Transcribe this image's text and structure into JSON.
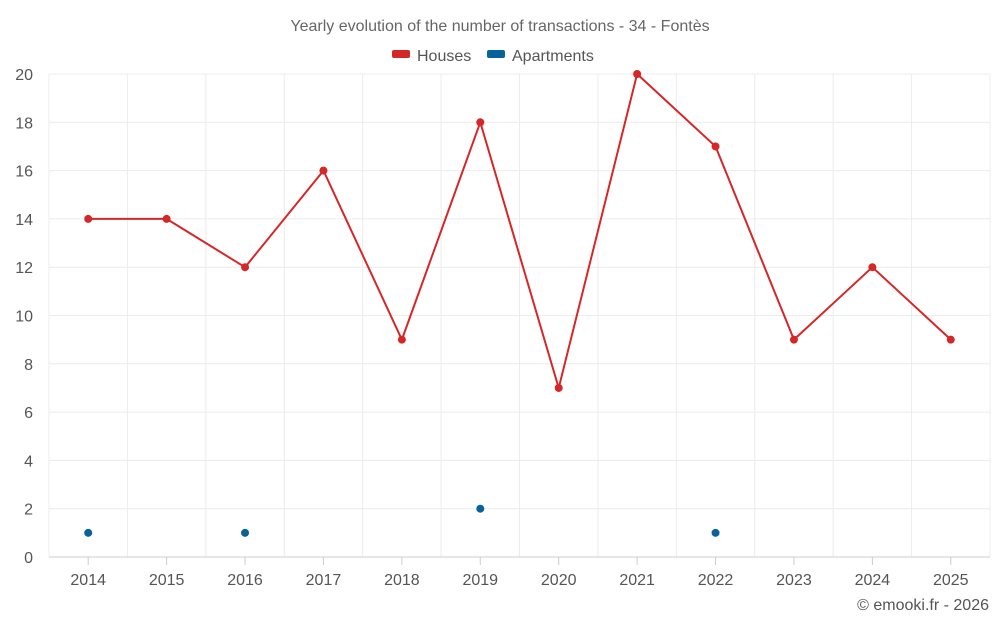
{
  "chart_data": {
    "type": "line",
    "title": "Yearly evolution of the number of transactions - 34 - Fontès",
    "xlabel": "",
    "ylabel": "",
    "categories": [
      "2014",
      "2015",
      "2016",
      "2017",
      "2018",
      "2019",
      "2020",
      "2021",
      "2022",
      "2023",
      "2024",
      "2025"
    ],
    "ylim": [
      0,
      20
    ],
    "yticks": [
      0,
      2,
      4,
      6,
      8,
      10,
      12,
      14,
      16,
      18,
      20
    ],
    "legend_position": "top-center",
    "grid": true,
    "series": [
      {
        "name": "Houses",
        "color": "#d62728",
        "line": true,
        "values": [
          14,
          14,
          12,
          16,
          9,
          18,
          7,
          20,
          17,
          9,
          12,
          9
        ]
      },
      {
        "name": "Apartments",
        "color": "#08639c",
        "line": false,
        "values": [
          1,
          null,
          1,
          null,
          null,
          2,
          null,
          null,
          1,
          null,
          null,
          null
        ]
      }
    ]
  },
  "credit": "© emooki.fr - 2026"
}
